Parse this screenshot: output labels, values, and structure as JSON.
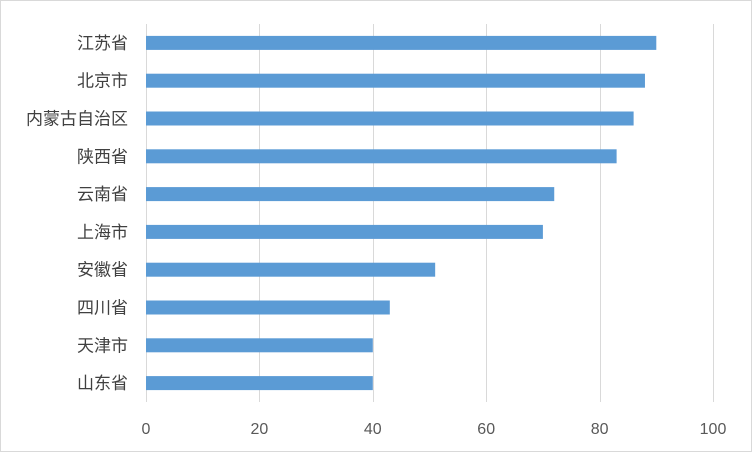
{
  "chart_data": {
    "type": "bar",
    "orientation": "horizontal",
    "categories": [
      "江苏省",
      "北京市",
      "内蒙古自治区",
      "陕西省",
      "云南省",
      "上海市",
      "安徽省",
      "四川省",
      "天津市",
      "山东省"
    ],
    "values": [
      90,
      88,
      86,
      83,
      72,
      70,
      51,
      43,
      40,
      40
    ],
    "title": "",
    "xlabel": "",
    "ylabel": "",
    "xlim": [
      0,
      100
    ],
    "xticks": [
      0,
      20,
      40,
      60,
      80,
      100
    ],
    "grid": true,
    "legend": "none",
    "bar_color": "#5b9bd5",
    "grid_color": "#d9d9d9",
    "label_color": "#404040",
    "tick_color": "#595959"
  }
}
